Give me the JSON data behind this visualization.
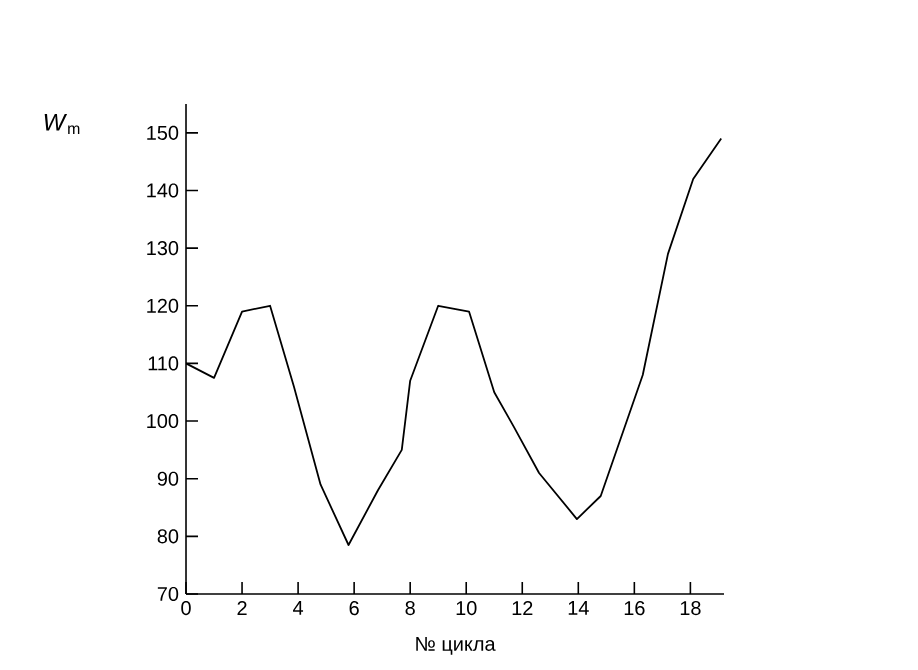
{
  "chart_data": {
    "type": "line",
    "xlabel": "№ цикла",
    "ylabel": "*W*$_{m}$",
    "x": [
      0,
      1,
      2,
      3,
      3.85,
      4.8,
      5.8,
      6.85,
      7.7,
      8.0,
      9.0,
      10.1,
      11.0,
      11.7,
      12.6,
      13.95,
      14.8,
      16.3,
      17.2,
      18.1,
      19.1
    ],
    "values": [
      110,
      107.5,
      119,
      120,
      106,
      89,
      78.5,
      88,
      95,
      107,
      120,
      119,
      105,
      99,
      91,
      83,
      87,
      108,
      129,
      142,
      149
    ],
    "color": "#000000",
    "xlim": [
      0,
      19.2
    ],
    "ylim": [
      70,
      155
    ],
    "xticks": [
      0,
      2,
      4,
      6,
      8,
      10,
      12,
      14,
      16,
      18
    ],
    "yticks": [
      70,
      80,
      90,
      100,
      110,
      120,
      130,
      140,
      150
    ],
    "grid": false,
    "marker": "none",
    "line_style": "solid"
  }
}
